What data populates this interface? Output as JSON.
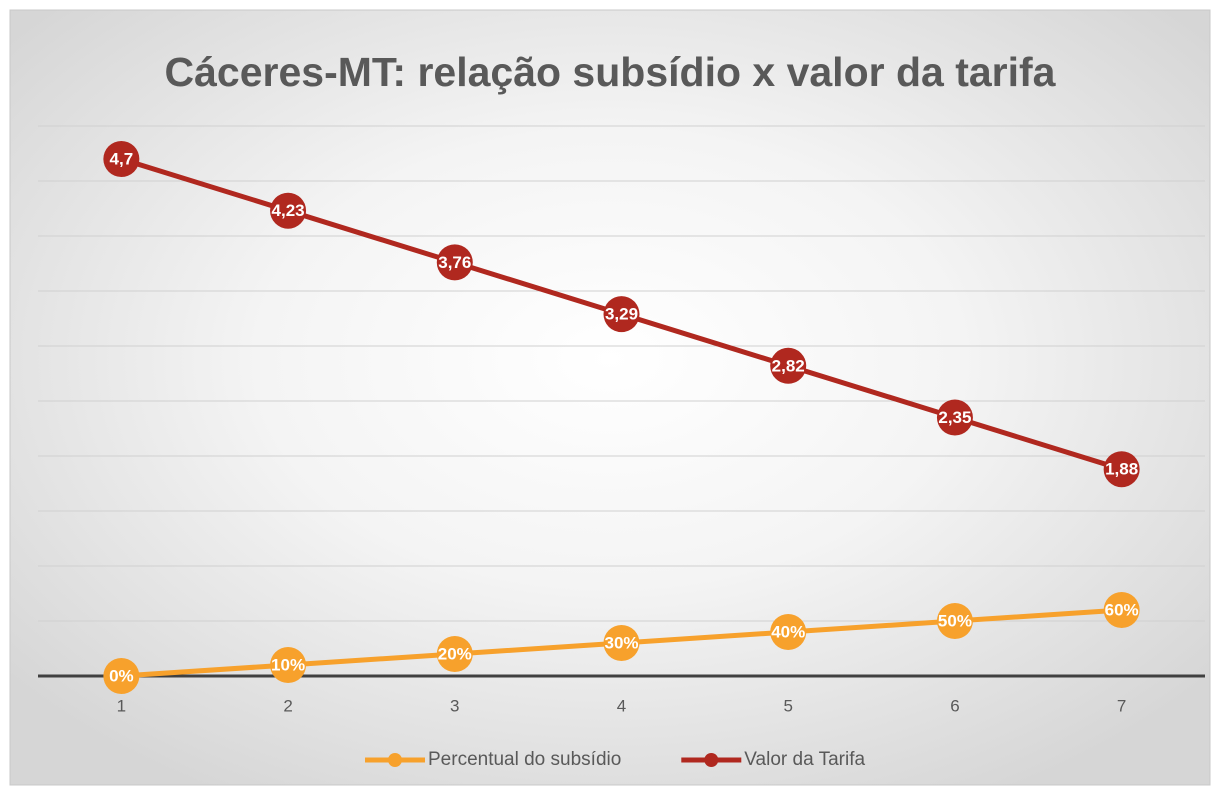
{
  "chart_data": {
    "type": "line",
    "title": "Cáceres-MT: relação subsídio x valor da tarifa",
    "categories": [
      "1",
      "2",
      "3",
      "4",
      "5",
      "6",
      "7"
    ],
    "series": [
      {
        "name": "Percentual do subsídio",
        "color": "#f7a12c",
        "values": [
          0,
          0.1,
          0.2,
          0.3,
          0.4,
          0.5,
          0.6
        ],
        "value_labels": [
          "0%",
          "10%",
          "20%",
          "30%",
          "40%",
          "50%",
          "60%"
        ]
      },
      {
        "name": "Valor da Tarifa",
        "color": "#b0281f",
        "values": [
          4.7,
          4.23,
          3.76,
          3.29,
          2.82,
          2.35,
          1.88
        ],
        "value_labels": [
          "4,7",
          "4,23",
          "3,76",
          "3,29",
          "2,82",
          "2,35",
          "1,88"
        ]
      }
    ],
    "ylim": [
      0,
      5
    ],
    "yticks": [
      0,
      0.5,
      1,
      1.5,
      2,
      2.5,
      3,
      3.5,
      4,
      4.5,
      5
    ],
    "grid": true,
    "legend": "bottom"
  }
}
